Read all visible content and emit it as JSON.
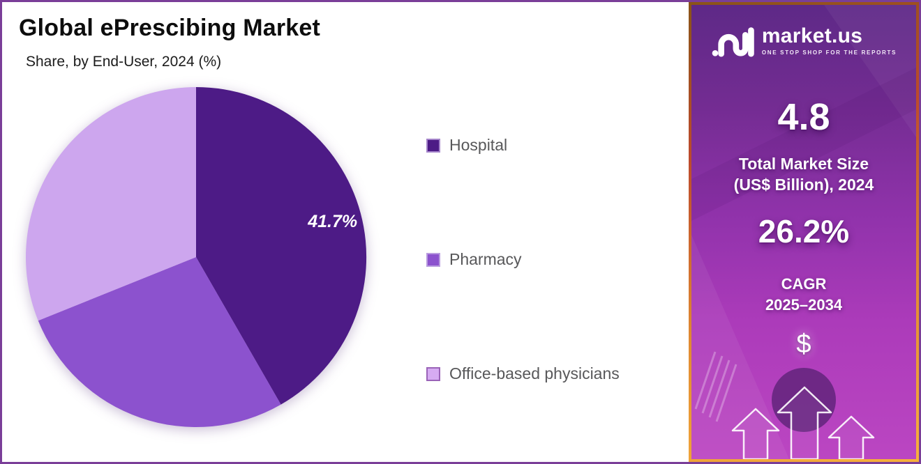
{
  "header": {
    "title": "Global ePrescibing Market",
    "subtitle": "Share, by End-User, 2024 (%)"
  },
  "chart_data": {
    "type": "pie",
    "title": "Global ePrescibing Market",
    "subtitle": "Share, by End-User, 2024 (%)",
    "unit": "%",
    "categories": [
      "Hospital",
      "Pharmacy",
      "Office-based physicians"
    ],
    "values": [
      41.7,
      27.2,
      31.1
    ],
    "value_labels": [
      "41.7%",
      "",
      ""
    ],
    "colors": [
      "#4d1b86",
      "#8c52ce",
      "#cda6ee"
    ],
    "start_angle_deg": 0,
    "direction": "clockwise",
    "legend_position": "right"
  },
  "legend": {
    "items": [
      {
        "label": "Hospital",
        "color": "#4d1b86",
        "border": "#a585cb"
      },
      {
        "label": "Pharmacy",
        "color": "#8c52ce",
        "border": "#b99cdf"
      },
      {
        "label": "Office-based physicians",
        "color": "#d6abf2",
        "border": "#9a63b8"
      }
    ]
  },
  "sidebar": {
    "brand": {
      "name": "market.us",
      "tagline": "ONE STOP SHOP FOR THE REPORTS"
    },
    "market_size": {
      "value": "4.8",
      "label_line1": "Total Market Size",
      "label_line2": "(US$ Billion), 2024"
    },
    "cagr": {
      "value": "26.2%",
      "label_line1": "CAGR",
      "label_line2": "2025–2034"
    },
    "dollar_symbol": "$"
  },
  "colors": {
    "page_border": "#7a3e98",
    "frame_orange": "#e9973c",
    "sidebar_top": "#5e2987",
    "sidebar_bottom": "#bb46c2",
    "legend_text": "#58585a"
  }
}
